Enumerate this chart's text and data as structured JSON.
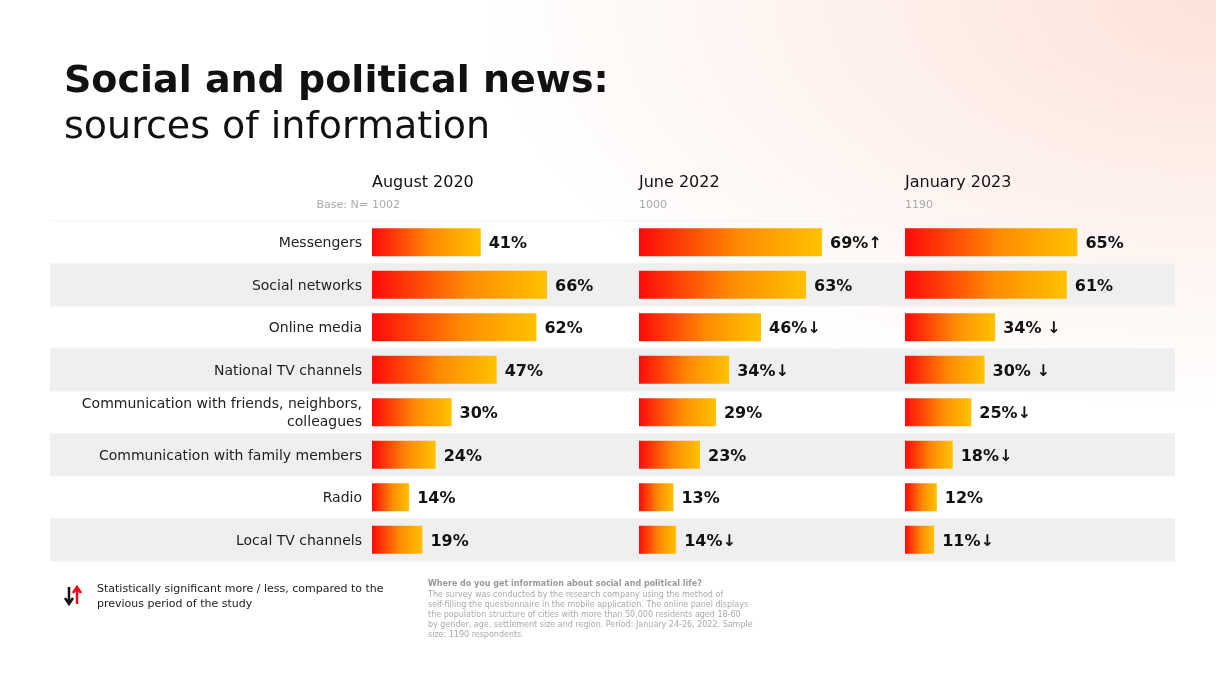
{
  "chart_data": [
    {
      "type": "other",
      "title": "Social and political news:",
      "subtitle": "sources of information",
      "annotations": [
        "Statistically significant more / less, compared to the previous period of the study",
        "Where do you get information about social and political life?",
        "The survey was conducted by the research company using the method of self-filling the questionnaire in the mobile application. The online panel displays the population structure of cities with more than 50,000 residents aged 18-60 by gender, age, settlement size and region. Period: January 24-26, 2022. Sample size: 1190 respondents."
      ]
    },
    {
      "type": "bar",
      "orientation": "horizontal",
      "title": "August 2020",
      "subtitle": "1002",
      "annotations": [
        "Base: N="
      ],
      "tick_labels": "y",
      "categories": [
        "Messengers",
        "Social networks",
        "Online media",
        "National TV channels",
        "Communication with friends, neighbors, colleagues",
        "Communication with family members",
        "Radio",
        "Local TV channels"
      ],
      "values": [
        41,
        66,
        62,
        47,
        30,
        24,
        14,
        19
      ],
      "value_labels": [
        "41%",
        "66%",
        "62%",
        "47%",
        "30%",
        "24%",
        "14%",
        "19%"
      ],
      "color": "#ffc200"
    },
    {
      "type": "bar",
      "orientation": "horizontal",
      "title": "June 2022",
      "subtitle": "1000",
      "tick_labels": false,
      "categories": [
        null,
        null,
        null,
        null,
        null,
        null,
        null,
        null
      ],
      "values": [
        69,
        63,
        46,
        34,
        29,
        23,
        13,
        14
      ],
      "value_labels": [
        "69%↑",
        "63%",
        "46%↓",
        "34%↓",
        "29%",
        "23%",
        "13%",
        "14%↓"
      ],
      "color": "#ffc200"
    },
    {
      "type": "bar",
      "orientation": "horizontal",
      "title": "January 2023",
      "subtitle": "1190",
      "tick_labels": false,
      "categories": [
        null,
        null,
        null,
        null,
        null,
        null,
        null,
        null
      ],
      "values": [
        65,
        61,
        34,
        30,
        25,
        18,
        12,
        11
      ],
      "value_labels": [
        "65%",
        "61%",
        "34% ↓",
        "30% ↓",
        "25%↓",
        "18%↓",
        "12%",
        "11%↓"
      ],
      "color": "#ffc200"
    }
  ]
}
